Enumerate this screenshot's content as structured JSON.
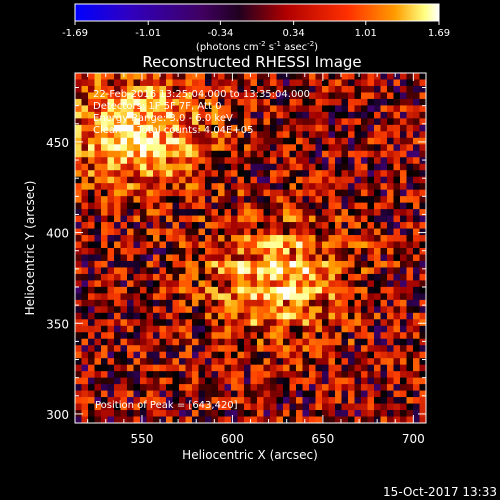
{
  "chart_data": {
    "type": "heatmap",
    "title": "Reconstructed RHESSI Image",
    "xlabel": "Heliocentric X (arcsec)",
    "ylabel": "Heliocentric Y (arcsec)",
    "xlim": [
      513,
      707
    ],
    "ylim": [
      295,
      488
    ],
    "x_ticks": [
      550,
      600,
      650,
      700
    ],
    "y_ticks": [
      300,
      350,
      400,
      450
    ],
    "colorbar": {
      "ticks": [
        "-1.69",
        "-1.01",
        "-0.34",
        "0.34",
        "1.01",
        "1.69"
      ],
      "unit_main": "(photons cm",
      "unit_sup1": "-2",
      "unit_mid": " s",
      "unit_sup2": "-1",
      "unit_end": " asec",
      "unit_sup3": "-2",
      "unit_close": ")",
      "range": [
        -1.69,
        1.69
      ],
      "colors": [
        "#0000ff",
        "#4a0080",
        "#000000",
        "#a00000",
        "#ff4000",
        "#ffa000",
        "#ffff80",
        "#ffffff"
      ]
    },
    "annotations": [
      "22-Feb-2016 13:25:04.000 to 13:35:04.000",
      "Detectors: 1F 5F 7F, Att 0",
      "Energy Range: 3.0 - 6.0 keV",
      "Clean     Total counts: 4.04E+05"
    ],
    "peak_label": "Position of Peak = [643,420]",
    "grid": false,
    "sources": [
      {
        "x": 625,
        "y": 375,
        "amplitude": 1.3
      },
      {
        "x": 547,
        "y": 455,
        "amplitude": 1.5
      }
    ]
  },
  "footer": {
    "timestamp": "15-Oct-2017 13:33"
  }
}
